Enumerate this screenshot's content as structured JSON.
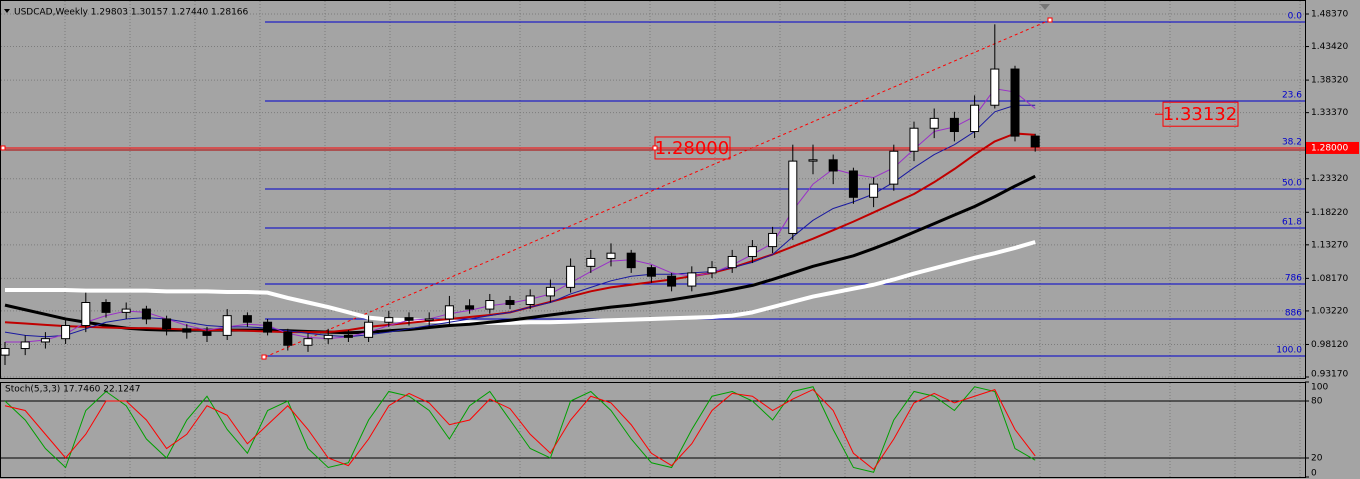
{
  "chart_data": [
    {
      "type": "candlestick",
      "title": "USDCAD,Weekly  1.29803 1.30157 1.27440 1.28166",
      "open": [
        0.965,
        0.975,
        0.985,
        0.99,
        1.01,
        1.045,
        1.03,
        1.035,
        1.02,
        1.005,
        1.0,
        0.995,
        1.025,
        1.015,
        1.0,
        0.98,
        0.99,
        0.995,
        0.992,
        1.015,
        1.022,
        1.018,
        1.02,
        1.04,
        1.035,
        1.048,
        1.042,
        1.055,
        1.068,
        1.1,
        1.112,
        1.12,
        1.098,
        1.085,
        1.07,
        1.09,
        1.098,
        1.115,
        1.13,
        1.15,
        1.26,
        1.262,
        1.245,
        1.205,
        1.225,
        1.275,
        1.31,
        1.325,
        1.305,
        1.345,
        1.4,
        1.29803
      ],
      "high": [
        0.985,
        0.995,
        1.0,
        1.02,
        1.06,
        1.05,
        1.045,
        1.04,
        1.025,
        1.012,
        1.008,
        1.035,
        1.03,
        1.02,
        1.005,
        0.998,
        1.005,
        1.003,
        1.025,
        1.032,
        1.03,
        1.03,
        1.055,
        1.05,
        1.058,
        1.055,
        1.065,
        1.08,
        1.112,
        1.125,
        1.135,
        1.125,
        1.102,
        1.09,
        1.1,
        1.108,
        1.125,
        1.14,
        1.16,
        1.285,
        1.285,
        1.27,
        1.25,
        1.235,
        1.285,
        1.32,
        1.34,
        1.335,
        1.36,
        1.468,
        1.405,
        1.30157
      ],
      "low": [
        0.95,
        0.965,
        0.975,
        0.982,
        1.0,
        1.022,
        1.02,
        1.012,
        0.995,
        0.99,
        0.985,
        0.988,
        1.008,
        0.995,
        0.972,
        0.97,
        0.982,
        0.985,
        0.985,
        1.008,
        1.01,
        1.01,
        1.012,
        1.028,
        1.028,
        1.035,
        1.035,
        1.045,
        1.06,
        1.09,
        1.1,
        1.09,
        1.075,
        1.062,
        1.062,
        1.082,
        1.09,
        1.105,
        1.12,
        1.14,
        1.24,
        1.225,
        1.195,
        1.19,
        1.215,
        1.26,
        1.295,
        1.29,
        1.295,
        1.34,
        1.29,
        1.2744
      ],
      "close": [
        0.975,
        0.985,
        0.99,
        1.01,
        1.045,
        1.03,
        1.035,
        1.02,
        1.005,
        1.0,
        0.995,
        1.025,
        1.015,
        1.0,
        0.98,
        0.99,
        0.995,
        0.992,
        1.015,
        1.022,
        1.018,
        1.02,
        1.04,
        1.035,
        1.048,
        1.042,
        1.055,
        1.068,
        1.1,
        1.112,
        1.12,
        1.098,
        1.085,
        1.07,
        1.09,
        1.098,
        1.115,
        1.13,
        1.15,
        1.26,
        1.262,
        1.245,
        1.205,
        1.225,
        1.275,
        1.31,
        1.325,
        1.305,
        1.345,
        1.4,
        1.298,
        1.28166
      ],
      "lines": [
        {
          "color": "#ffffff",
          "width": 4,
          "values": [
            1.064,
            1.064,
            1.064,
            1.064,
            1.063,
            1.063,
            1.063,
            1.063,
            1.062,
            1.062,
            1.062,
            1.061,
            1.061,
            1.06,
            1.052,
            1.045,
            1.038,
            1.03,
            1.022,
            1.019,
            1.018,
            1.017,
            1.016,
            1.015,
            1.014,
            1.014,
            1.015,
            1.015,
            1.016,
            1.017,
            1.018,
            1.019,
            1.02,
            1.021,
            1.022,
            1.023,
            1.025,
            1.03,
            1.038,
            1.046,
            1.054,
            1.06,
            1.066,
            1.072,
            1.08,
            1.089,
            1.097,
            1.105,
            1.113,
            1.12,
            1.128,
            1.137
          ]
        },
        {
          "color": "#000000",
          "width": 3,
          "values": [
            1.041,
            1.034,
            1.027,
            1.02,
            1.015,
            1.01,
            1.006,
            1.004,
            1.003,
            1.003,
            1.003,
            1.003,
            1.003,
            1.003,
            1.002,
            1.001,
            1.0,
            0.999,
            1.0,
            1.002,
            1.004,
            1.007,
            1.01,
            1.012,
            1.015,
            1.018,
            1.022,
            1.026,
            1.03,
            1.034,
            1.038,
            1.041,
            1.045,
            1.049,
            1.054,
            1.059,
            1.065,
            1.071,
            1.08,
            1.09,
            1.1,
            1.108,
            1.116,
            1.127,
            1.139,
            1.152,
            1.165,
            1.178,
            1.191,
            1.206,
            1.222,
            1.237
          ]
        },
        {
          "color": "#c00000",
          "width": 2,
          "values": [
            1.015,
            1.013,
            1.011,
            1.009,
            1.008,
            1.007,
            1.006,
            1.006,
            1.005,
            1.004,
            1.003,
            1.003,
            1.002,
            1.001,
            1.0,
            1.0,
            1.0,
            1.003,
            1.008,
            1.011,
            1.014,
            1.017,
            1.02,
            1.023,
            1.026,
            1.03,
            1.038,
            1.046,
            1.054,
            1.062,
            1.068,
            1.072,
            1.076,
            1.08,
            1.085,
            1.09,
            1.098,
            1.108,
            1.118,
            1.13,
            1.142,
            1.155,
            1.168,
            1.182,
            1.196,
            1.21,
            1.228,
            1.248,
            1.27,
            1.29,
            1.302,
            1.3
          ]
        },
        {
          "color": "#1a1aa0",
          "width": 1,
          "values": [
            1.0,
            0.995,
            0.993,
            0.995,
            1.005,
            1.015,
            1.02,
            1.022,
            1.02,
            1.015,
            1.01,
            1.008,
            1.008,
            1.006,
            1.002,
            0.998,
            0.995,
            0.993,
            0.996,
            1.0,
            1.005,
            1.01,
            1.015,
            1.02,
            1.025,
            1.03,
            1.038,
            1.045,
            1.058,
            1.068,
            1.078,
            1.085,
            1.088,
            1.088,
            1.09,
            1.092,
            1.098,
            1.106,
            1.118,
            1.145,
            1.17,
            1.188,
            1.198,
            1.21,
            1.228,
            1.25,
            1.27,
            1.285,
            1.305,
            1.335,
            1.345,
            1.345
          ]
        },
        {
          "color": "#9a30c8",
          "width": 1,
          "values": [
            0.985,
            0.985,
            0.988,
            0.997,
            1.015,
            1.025,
            1.032,
            1.03,
            1.02,
            1.01,
            1.003,
            1.008,
            1.012,
            1.01,
            0.998,
            0.992,
            0.99,
            0.993,
            1.0,
            1.01,
            1.018,
            1.02,
            1.028,
            1.033,
            1.04,
            1.044,
            1.05,
            1.058,
            1.075,
            1.092,
            1.108,
            1.11,
            1.103,
            1.09,
            1.085,
            1.09,
            1.102,
            1.118,
            1.135,
            1.185,
            1.225,
            1.248,
            1.24,
            1.235,
            1.25,
            1.278,
            1.305,
            1.312,
            1.328,
            1.37,
            1.365,
            1.34
          ]
        }
      ],
      "ylim": [
        0.9302,
        1.505
      ],
      "yticks": [
        {
          "value": 1.4837,
          "label": "1.48370"
        },
        {
          "value": 1.4342,
          "label": "1.43420"
        },
        {
          "value": 1.3832,
          "label": "1.38320"
        },
        {
          "value": 1.3337,
          "label": "1.33370"
        },
        {
          "value": 1.2332,
          "label": "1.23320"
        },
        {
          "value": 1.1822,
          "label": "1.18220"
        },
        {
          "value": 1.1327,
          "label": "1.13270"
        },
        {
          "value": 1.0817,
          "label": "1.08170"
        },
        {
          "value": 1.0322,
          "label": "1.03220"
        },
        {
          "value": 0.9812,
          "label": "0.98120"
        },
        {
          "value": 0.9317,
          "label": "0.93170"
        }
      ],
      "grid": true,
      "fibonacci": {
        "color": "#0000cc",
        "levels": [
          {
            "value": 1.4715,
            "label": "0.0"
          },
          {
            "value": 1.3514,
            "label": "23.6"
          },
          {
            "value": 1.2799,
            "label": "38.2"
          },
          {
            "value": 1.2176,
            "label": "50.0"
          },
          {
            "value": 1.1583,
            "label": "61.8"
          },
          {
            "value": 1.0731,
            "label": "786"
          },
          {
            "value": 1.0199,
            "label": "886"
          },
          {
            "value": 0.9636,
            "label": "100.0"
          }
        ]
      },
      "trendline": {
        "color": "#ff0000",
        "values": [
          0.9621,
          1.4746
        ]
      },
      "price_line": {
        "value": 1.28,
        "label": "1.28000",
        "color": "#ff0000"
      },
      "price_label": {
        "value": 1.33132,
        "label": "1.33132",
        "color": "#ff0000"
      }
    },
    {
      "type": "line",
      "title": "Stoch(5,3,3) 17.7460 22.1247",
      "series": [
        {
          "color": "#00a000",
          "values": [
            80,
            60,
            30,
            10,
            70,
            90,
            75,
            40,
            20,
            60,
            85,
            50,
            25,
            70,
            80,
            30,
            10,
            15,
            60,
            90,
            85,
            70,
            40,
            75,
            90,
            60,
            30,
            20,
            80,
            90,
            70,
            40,
            15,
            10,
            50,
            85,
            90,
            80,
            60,
            90,
            95,
            50,
            10,
            5,
            60,
            90,
            85,
            70,
            95,
            90,
            30,
            17.746
          ]
        },
        {
          "color": "#ff0000",
          "values": [
            75,
            70,
            45,
            20,
            45,
            80,
            80,
            60,
            30,
            45,
            75,
            65,
            35,
            55,
            75,
            50,
            20,
            12,
            40,
            75,
            88,
            78,
            55,
            60,
            82,
            72,
            45,
            25,
            60,
            85,
            78,
            55,
            25,
            12,
            35,
            70,
            88,
            85,
            70,
            82,
            92,
            70,
            25,
            8,
            40,
            78,
            88,
            78,
            85,
            92,
            50,
            22.1247
          ]
        }
      ],
      "ylim": [
        0,
        100
      ],
      "yticks": [
        0,
        20,
        80,
        100
      ],
      "levels": [
        20,
        80
      ],
      "grid": true
    }
  ]
}
